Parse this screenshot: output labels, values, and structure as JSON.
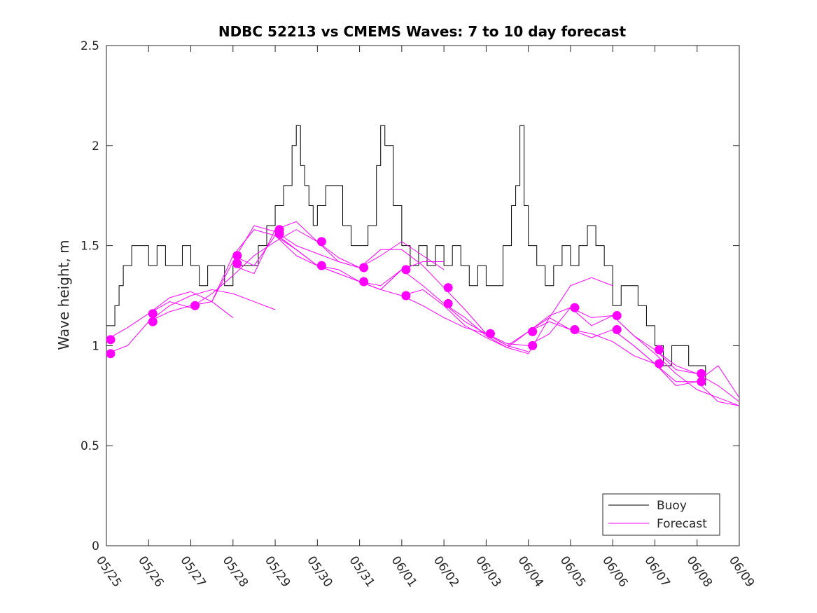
{
  "chart_data": {
    "type": "line",
    "title": "NDBC 52213 vs CMEMS Waves: 7 to 10 day forecast",
    "xlabel": "",
    "ylabel": "Wave height, m",
    "xlim": [
      "05/25",
      "06/09"
    ],
    "ylim": [
      0,
      2.5
    ],
    "y_ticks": [
      "0",
      "0.5",
      "1",
      "1.5",
      "2",
      "2.5"
    ],
    "x_ticks": [
      "05/25",
      "05/26",
      "05/27",
      "05/28",
      "05/29",
      "05/30",
      "05/31",
      "06/01",
      "06/02",
      "06/03",
      "06/04",
      "06/05",
      "06/06",
      "06/07",
      "06/08",
      "06/09"
    ],
    "grid": false,
    "legend": {
      "position": "bottom-right",
      "entries": [
        "Buoy",
        "Forecast"
      ]
    },
    "colors": {
      "buoy": "#000000",
      "forecast": "#ff00ff"
    },
    "series": [
      {
        "name": "Buoy",
        "x_day": [
          0.0,
          0.1,
          0.2,
          0.3,
          0.4,
          0.5,
          0.6,
          0.8,
          1.0,
          1.2,
          1.4,
          1.6,
          1.8,
          2.0,
          2.2,
          2.4,
          2.6,
          2.8,
          3.0,
          3.2,
          3.4,
          3.6,
          3.8,
          4.0,
          4.2,
          4.4,
          4.5,
          4.6,
          4.7,
          4.8,
          4.9,
          5.0,
          5.2,
          5.4,
          5.6,
          5.8,
          6.0,
          6.2,
          6.4,
          6.5,
          6.6,
          6.8,
          7.0,
          7.2,
          7.4,
          7.6,
          7.8,
          8.0,
          8.2,
          8.4,
          8.6,
          8.8,
          9.0,
          9.2,
          9.4,
          9.6,
          9.7,
          9.8,
          9.9,
          10.0,
          10.2,
          10.4,
          10.6,
          10.8,
          11.0,
          11.2,
          11.4,
          11.6,
          11.8,
          12.0,
          12.2,
          12.4,
          12.6,
          12.8,
          13.0,
          13.2,
          13.4,
          13.6,
          13.8,
          14.0,
          14.2
        ],
        "values": [
          1.1,
          1.1,
          1.2,
          1.3,
          1.4,
          1.4,
          1.5,
          1.5,
          1.4,
          1.5,
          1.4,
          1.4,
          1.5,
          1.4,
          1.3,
          1.4,
          1.4,
          1.3,
          1.4,
          1.4,
          1.4,
          1.5,
          1.6,
          1.7,
          1.8,
          2.0,
          2.1,
          1.9,
          1.8,
          1.7,
          1.6,
          1.7,
          1.8,
          1.8,
          1.6,
          1.5,
          1.5,
          1.6,
          1.9,
          2.1,
          2.0,
          1.7,
          1.5,
          1.4,
          1.5,
          1.4,
          1.5,
          1.4,
          1.5,
          1.4,
          1.3,
          1.4,
          1.3,
          1.3,
          1.5,
          1.7,
          1.8,
          2.1,
          1.7,
          1.5,
          1.4,
          1.3,
          1.4,
          1.5,
          1.4,
          1.5,
          1.6,
          1.5,
          1.4,
          1.2,
          1.3,
          1.3,
          1.2,
          1.1,
          1.0,
          0.9,
          1.0,
          1.0,
          0.9,
          0.9,
          0.8
        ]
      },
      {
        "name": "",
        "x_day": [
          0.0,
          0.5,
          1.0,
          1.5,
          2.0,
          2.5,
          3.0
        ],
        "values": [
          1.03,
          1.09,
          1.16,
          1.24,
          1.27,
          1.22,
          1.14
        ]
      },
      {
        "name": "",
        "x_day": [
          0.0,
          0.5,
          1.0,
          1.5,
          2.0,
          2.5,
          3.0,
          3.5,
          4.0
        ],
        "values": [
          0.96,
          1.0,
          1.12,
          1.2,
          1.25,
          1.28,
          1.26,
          1.22,
          1.18
        ]
      },
      {
        "name": "",
        "x_day": [
          1.0,
          1.5,
          2.0,
          2.5,
          3.0,
          3.5,
          4.0,
          4.5,
          5.0
        ],
        "values": [
          1.16,
          1.22,
          1.19,
          1.26,
          1.35,
          1.45,
          1.52,
          1.58,
          1.52
        ]
      },
      {
        "name": "",
        "x_day": [
          1.0,
          1.5,
          2.0,
          2.5,
          3.0,
          3.5,
          4.0,
          4.5,
          5.0,
          5.5,
          6.0
        ],
        "values": [
          1.12,
          1.17,
          1.2,
          1.22,
          1.42,
          1.6,
          1.57,
          1.5,
          1.46,
          1.42,
          1.39
        ]
      },
      {
        "name": "",
        "x_day": [
          2.0,
          2.5,
          3.0,
          3.5,
          4.0,
          4.5,
          5.0,
          5.5,
          6.0,
          6.5,
          7.0
        ],
        "values": [
          1.2,
          1.22,
          1.45,
          1.58,
          1.55,
          1.45,
          1.4,
          1.38,
          1.32,
          1.28,
          1.38
        ]
      },
      {
        "name": "",
        "x_day": [
          3.0,
          3.5,
          4.0,
          4.5,
          5.0,
          5.5,
          6.0,
          6.5,
          7.0,
          7.5,
          8.0
        ],
        "values": [
          1.4,
          1.36,
          1.58,
          1.62,
          1.52,
          1.42,
          1.39,
          1.45,
          1.52,
          1.45,
          1.38
        ]
      },
      {
        "name": "",
        "x_day": [
          3.0,
          3.5,
          4.0,
          4.5,
          5.0,
          5.5,
          6.0,
          6.5,
          7.0,
          7.5,
          8.0
        ],
        "values": [
          1.45,
          1.4,
          1.55,
          1.48,
          1.4,
          1.36,
          1.32,
          1.28,
          1.38,
          1.42,
          1.42
        ]
      },
      {
        "name": "",
        "x_day": [
          4.0,
          4.5,
          5.0,
          5.5,
          6.0,
          6.5,
          7.0,
          7.5,
          8.0,
          8.5,
          9.0
        ],
        "values": [
          1.56,
          1.48,
          1.4,
          1.36,
          1.32,
          1.28,
          1.25,
          1.2,
          1.14,
          1.09,
          1.06
        ]
      },
      {
        "name": "",
        "x_day": [
          5.0,
          5.5,
          6.0,
          6.5,
          7.0,
          7.5,
          8.0,
          8.5,
          9.0,
          9.5,
          10.0
        ],
        "values": [
          1.52,
          1.44,
          1.39,
          1.48,
          1.48,
          1.4,
          1.29,
          1.18,
          1.06,
          1.0,
          0.97
        ]
      },
      {
        "name": "",
        "x_day": [
          6.0,
          6.5,
          7.0,
          7.5,
          8.0,
          8.5,
          9.0,
          9.5,
          10.0,
          10.5,
          11.0
        ],
        "values": [
          1.32,
          1.3,
          1.38,
          1.3,
          1.21,
          1.12,
          1.06,
          1.01,
          1.0,
          1.06,
          1.19
        ]
      },
      {
        "name": "",
        "x_day": [
          7.0,
          7.5,
          8.0,
          8.5,
          9.0,
          9.5,
          10.0,
          10.5,
          11.0,
          11.5,
          12.0
        ],
        "values": [
          1.25,
          1.28,
          1.2,
          1.1,
          1.04,
          0.99,
          0.96,
          1.14,
          1.3,
          1.34,
          1.3
        ]
      },
      {
        "name": "",
        "x_day": [
          8.0,
          8.5,
          9.0,
          9.5,
          10.0,
          10.5,
          11.0,
          11.5,
          12.0,
          12.5,
          13.0
        ],
        "values": [
          1.21,
          1.14,
          1.05,
          0.99,
          1.07,
          1.12,
          1.08,
          1.06,
          1.02,
          0.95,
          0.91
        ]
      },
      {
        "name": "",
        "x_day": [
          9.0,
          9.5,
          10.0,
          10.5,
          11.0,
          11.5,
          12.0,
          12.5,
          13.0,
          13.5,
          14.0
        ],
        "values": [
          1.06,
          1.0,
          1.07,
          1.15,
          1.19,
          1.14,
          1.15,
          1.05,
          0.98,
          0.88,
          0.86
        ]
      },
      {
        "name": "",
        "x_day": [
          10.0,
          10.5,
          11.0,
          11.5,
          12.0,
          12.5,
          13.0,
          13.5,
          14.0,
          14.5,
          15.0
        ],
        "values": [
          1.07,
          1.14,
          1.08,
          1.04,
          1.08,
          1.0,
          0.91,
          0.8,
          0.82,
          0.9,
          0.74
        ]
      },
      {
        "name": "",
        "x_day": [
          11.0,
          11.5,
          12.0,
          12.5,
          13.0,
          13.5,
          14.0,
          14.5,
          15.0
        ],
        "values": [
          1.19,
          1.1,
          1.15,
          1.05,
          0.96,
          0.86,
          0.78,
          0.74,
          0.7
        ]
      },
      {
        "name": "",
        "x_day": [
          12.0,
          12.5,
          13.0,
          13.5,
          14.0,
          14.5,
          15.0
        ],
        "values": [
          1.08,
          1.0,
          0.91,
          0.82,
          0.82,
          0.72,
          0.7
        ]
      },
      {
        "name": "",
        "x_day": [
          13.0,
          13.5,
          14.0,
          14.5,
          15.0
        ],
        "values": [
          0.98,
          0.9,
          0.86,
          0.8,
          0.72
        ]
      }
    ],
    "forecast_markers": {
      "x_day": [
        0.1,
        0.1,
        1.1,
        1.1,
        2.1,
        3.1,
        3.1,
        4.1,
        4.1,
        5.1,
        5.1,
        6.1,
        6.1,
        7.1,
        7.1,
        8.1,
        8.1,
        9.1,
        10.1,
        10.1,
        11.1,
        11.1,
        12.1,
        12.1,
        13.1,
        13.1,
        14.1,
        14.1
      ],
      "values": [
        1.03,
        0.96,
        1.16,
        1.12,
        1.2,
        1.45,
        1.41,
        1.58,
        1.56,
        1.52,
        1.4,
        1.39,
        1.32,
        1.38,
        1.25,
        1.29,
        1.21,
        1.06,
        1.07,
        1.0,
        1.19,
        1.08,
        1.15,
        1.08,
        0.98,
        0.91,
        0.86,
        0.82
      ]
    }
  }
}
